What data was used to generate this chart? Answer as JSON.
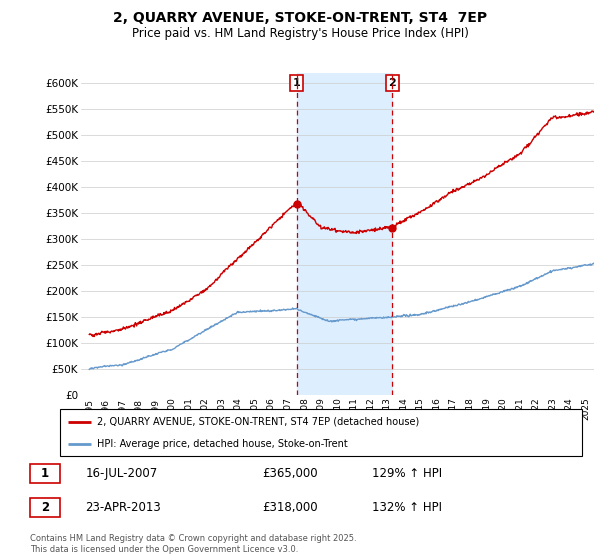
{
  "title": "2, QUARRY AVENUE, STOKE-ON-TRENT, ST4  7EP",
  "subtitle": "Price paid vs. HM Land Registry's House Price Index (HPI)",
  "ylim": [
    0,
    620000
  ],
  "yticks": [
    0,
    50000,
    100000,
    150000,
    200000,
    250000,
    300000,
    350000,
    400000,
    450000,
    500000,
    550000,
    600000
  ],
  "xlim_start": 1994.5,
  "xlim_end": 2025.5,
  "ann1_x": 2007.54,
  "ann1_y": 365000,
  "ann1_date": "16-JUL-2007",
  "ann1_price": "£365,000",
  "ann1_hpi": "129% ↑ HPI",
  "ann2_x": 2013.31,
  "ann2_y": 318000,
  "ann2_date": "23-APR-2013",
  "ann2_price": "£318,000",
  "ann2_hpi": "132% ↑ HPI",
  "legend_line1": "2, QUARRY AVENUE, STOKE-ON-TRENT, ST4 7EP (detached house)",
  "legend_line2": "HPI: Average price, detached house, Stoke-on-Trent",
  "footer": "Contains HM Land Registry data © Crown copyright and database right 2025.\nThis data is licensed under the Open Government Licence v3.0.",
  "red_color": "#cc0000",
  "blue_color": "#6699cc",
  "highlight_color": "#ddeeff",
  "grid_color": "#cccccc"
}
